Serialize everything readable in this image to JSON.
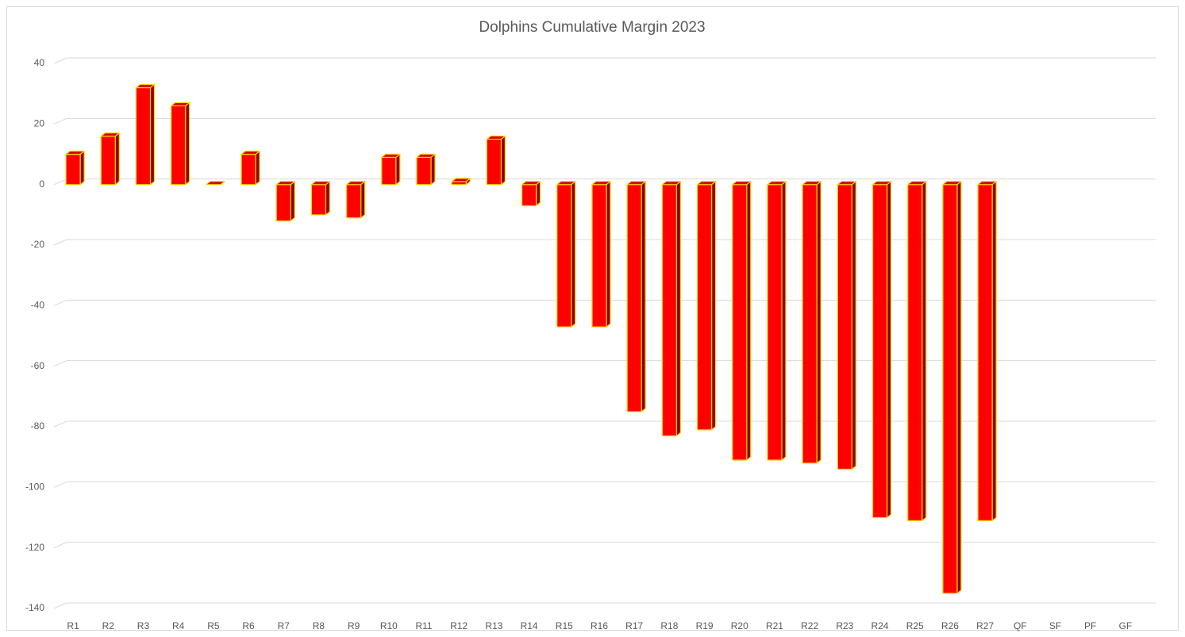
{
  "chart_data": {
    "type": "bar",
    "title": "Dolphins Cumulative Margin 2023",
    "categories": [
      "R1",
      "R2",
      "R3",
      "R4",
      "R5",
      "R6",
      "R7",
      "R8",
      "R9",
      "R10",
      "R11",
      "R12",
      "R13",
      "R14",
      "R15",
      "R16",
      "R17",
      "R18",
      "R19",
      "R20",
      "R21",
      "R22",
      "R23",
      "R24",
      "R25",
      "R26",
      "R27",
      "QF",
      "SF",
      "PF",
      "GF"
    ],
    "values": [
      10,
      16,
      32,
      26,
      0,
      10,
      -12,
      -10,
      -11,
      9,
      9,
      1,
      15,
      -7,
      -47,
      -47,
      -75,
      -83,
      -81,
      -91,
      -91,
      -92,
      -94,
      -110,
      -111,
      -135,
      -111,
      null,
      null,
      null,
      null
    ],
    "color": "#ff0000",
    "edge_color": "#ffd000",
    "ylim": [
      -140,
      40
    ],
    "yticks": [
      -140,
      -120,
      -100,
      -80,
      -60,
      -40,
      -20,
      0,
      20,
      40
    ],
    "grid": true
  }
}
